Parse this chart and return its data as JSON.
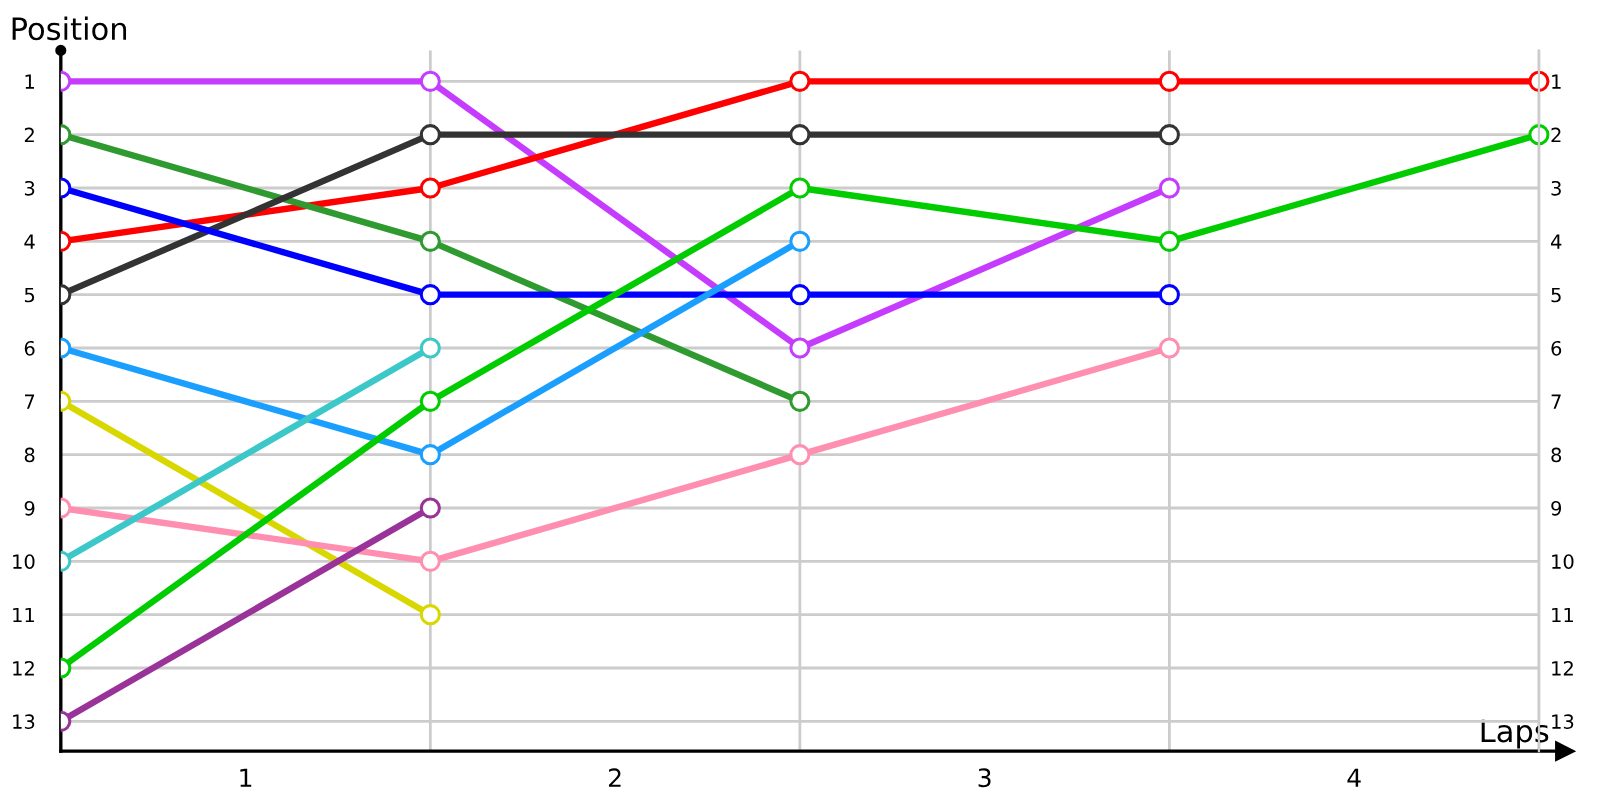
{
  "chart_data": {
    "type": "line",
    "xlabel": "Laps",
    "ylabel": "Position",
    "x": [
      0,
      1,
      2,
      3,
      4
    ],
    "xlim": [
      0,
      4.07
    ],
    "xticks": [
      {
        "value": 0,
        "label": null
      },
      {
        "value": 0.5,
        "label": "1"
      },
      {
        "value": 1,
        "label": null
      },
      {
        "value": 1.5,
        "label": "2"
      },
      {
        "value": 2,
        "label": null
      },
      {
        "value": 2.5,
        "label": "3"
      },
      {
        "value": 3,
        "label": null
      },
      {
        "value": 3.5,
        "label": "4"
      },
      {
        "value": 4,
        "label": null
      }
    ],
    "ylim": [
      13.56,
      0.42
    ],
    "yticks": [
      1,
      2,
      3,
      4,
      5,
      6,
      7,
      8,
      9,
      10,
      11,
      12,
      13
    ],
    "y2lim": [
      13.56,
      0.42
    ],
    "y2ticks": [
      1,
      2,
      3,
      4,
      5,
      6,
      7,
      8,
      9,
      10,
      11,
      12,
      13
    ],
    "grid": true,
    "marker": "circle",
    "line_style": "solid",
    "series": [
      {
        "color": "#c63cff",
        "values": [
          1,
          1,
          6,
          3,
          null
        ]
      },
      {
        "color": "#ff0000",
        "values": [
          4,
          3,
          1,
          1,
          1
        ]
      },
      {
        "color": "#2f9a2f",
        "values": [
          2,
          4,
          7,
          null,
          null
        ]
      },
      {
        "color": "#333333",
        "values": [
          5,
          2,
          2,
          2,
          null
        ]
      },
      {
        "color": "#0000ff",
        "values": [
          3,
          5,
          5,
          5,
          null
        ]
      },
      {
        "color": "#1a9fff",
        "values": [
          6,
          8,
          4,
          null,
          null
        ]
      },
      {
        "color": "#d8d800",
        "values": [
          7,
          11,
          null,
          null,
          null
        ]
      },
      {
        "color": "#ff8fb0",
        "values": [
          9,
          10,
          8,
          6,
          null
        ]
      },
      {
        "color": "#3cc8c8",
        "values": [
          10,
          6,
          null,
          null,
          null
        ]
      },
      {
        "color": "#00cc00",
        "values": [
          12,
          7,
          3,
          4,
          2
        ]
      },
      {
        "color": "#993399",
        "values": [
          13,
          9,
          null,
          null,
          null
        ]
      }
    ]
  }
}
